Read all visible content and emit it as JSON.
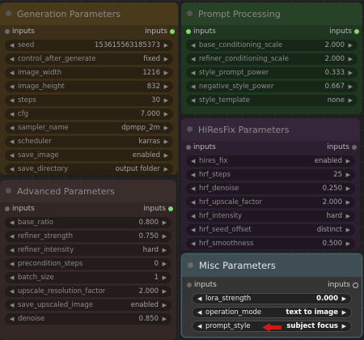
{
  "nodes": {
    "generation": {
      "title": "Generation Parameters",
      "inputs_left": "inputs",
      "inputs_right": "inputs",
      "widgets": [
        {
          "name": "seed",
          "value": "153615563185373"
        },
        {
          "name": "control_after_generate",
          "value": "fixed"
        },
        {
          "name": "image_width",
          "value": "1216"
        },
        {
          "name": "image_height",
          "value": "832"
        },
        {
          "name": "steps",
          "value": "30"
        },
        {
          "name": "cfg",
          "value": "7.000"
        },
        {
          "name": "sampler_name",
          "value": "dpmpp_2m"
        },
        {
          "name": "scheduler",
          "value": "karras"
        },
        {
          "name": "save_image",
          "value": "enabled"
        },
        {
          "name": "save_directory",
          "value": "output folder"
        }
      ]
    },
    "advanced": {
      "title": "Advanced Parameters",
      "inputs_left": "inputs",
      "inputs_right": "inputs",
      "widgets": [
        {
          "name": "base_ratio",
          "value": "0.800"
        },
        {
          "name": "refiner_strength",
          "value": "0.750"
        },
        {
          "name": "refiner_intensity",
          "value": "hard"
        },
        {
          "name": "precondition_steps",
          "value": "0"
        },
        {
          "name": "batch_size",
          "value": "1"
        },
        {
          "name": "upscale_resolution_factor",
          "value": "2.000"
        },
        {
          "name": "save_upscaled_image",
          "value": "enabled"
        },
        {
          "name": "denoise",
          "value": "0.850"
        }
      ]
    },
    "prompt": {
      "title": "Prompt Processing",
      "inputs_left": "inputs",
      "inputs_right": "inputs",
      "widgets": [
        {
          "name": "base_conditioning_scale",
          "value": "2.000"
        },
        {
          "name": "refiner_conditioning_scale",
          "value": "2.000"
        },
        {
          "name": "style_prompt_power",
          "value": "0.333"
        },
        {
          "name": "negative_style_power",
          "value": "0.667"
        },
        {
          "name": "style_template",
          "value": "none"
        }
      ]
    },
    "hires": {
      "title": "HiResFix Parameters",
      "inputs_left": "inputs",
      "inputs_right": "inputs",
      "widgets": [
        {
          "name": "hires_fix",
          "value": "enabled"
        },
        {
          "name": "hrf_steps",
          "value": "25"
        },
        {
          "name": "hrf_denoise",
          "value": "0.250"
        },
        {
          "name": "hrf_upscale_factor",
          "value": "2.000"
        },
        {
          "name": "hrf_intensity",
          "value": "hard"
        },
        {
          "name": "hrf_seed_offset",
          "value": "distinct"
        },
        {
          "name": "hrf_smoothness",
          "value": "0.500"
        }
      ]
    },
    "misc": {
      "title": "Misc Parameters",
      "inputs_left": "inputs",
      "inputs_right": "inputs",
      "widgets": [
        {
          "name": "lora_strength",
          "value": "0.000"
        },
        {
          "name": "operation_mode",
          "value": "text to image"
        },
        {
          "name": "prompt_style",
          "value": "subject focus"
        }
      ]
    }
  },
  "colors": {
    "pointer_arrow": "#d01818",
    "active_title": "#3f4d55",
    "slot_connected": "#7ddc6a"
  }
}
